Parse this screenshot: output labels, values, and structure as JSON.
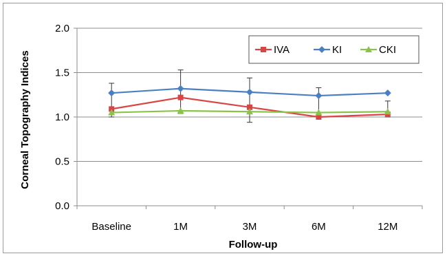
{
  "chart_data": {
    "type": "line",
    "title": "",
    "xlabel": "Follow-up",
    "ylabel": "Corneal Topography Indices",
    "categories": [
      "Baseline",
      "1M",
      "3M",
      "6M",
      "12M"
    ],
    "ylim": [
      0,
      2.0
    ],
    "yticks": [
      "0.0",
      "0.5",
      "1.0",
      "1.5",
      "2.0"
    ],
    "grid": "horizontal",
    "legend_position": "top-right",
    "series": [
      {
        "name": "IVA",
        "color": "#d94545",
        "marker": "square",
        "values": [
          1.09,
          1.22,
          1.11,
          1.0,
          1.03
        ]
      },
      {
        "name": "KI",
        "color": "#4a7fc4",
        "marker": "diamond",
        "values": [
          1.27,
          1.32,
          1.28,
          1.24,
          1.27
        ],
        "error_upper": [
          0.11,
          0.21,
          0.16,
          0.09,
          0.0
        ]
      },
      {
        "name": "CKI",
        "color": "#8bc34a",
        "marker": "triangle",
        "values": [
          1.05,
          1.07,
          1.06,
          1.05,
          1.06
        ]
      }
    ],
    "error_bars": [
      {
        "category": "Baseline",
        "low": 1.0,
        "high": 1.38
      },
      {
        "category": "1M",
        "low": 1.04,
        "high": 1.53
      },
      {
        "category": "3M",
        "low": 0.94,
        "high": 1.44
      },
      {
        "category": "6M",
        "low": 1.0,
        "high": 1.33
      },
      {
        "category": "12M",
        "low": 1.0,
        "high": 1.18
      }
    ]
  }
}
